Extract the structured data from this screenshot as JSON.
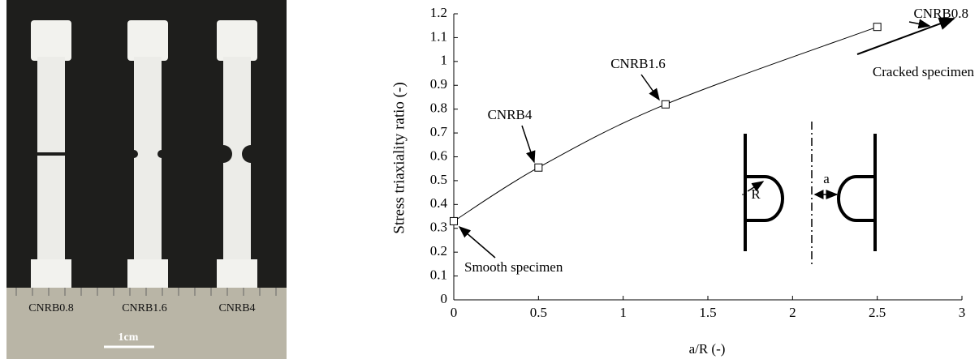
{
  "photo": {
    "labels": [
      "CNRB0.8",
      "CNRB1.6",
      "CNRB4"
    ],
    "scale": "1cm"
  },
  "chart_data": {
    "type": "line",
    "xlabel": "a/R (-)",
    "ylabel": "Stress triaxiality ratio (-)",
    "x": [
      0,
      0.5,
      1.25,
      2.5
    ],
    "series": [
      {
        "color": "#000000",
        "values": [
          0.33,
          0.555,
          0.82,
          1.145
        ]
      }
    ],
    "xlim": [
      0,
      3
    ],
    "xticks": [
      0,
      0.5,
      1,
      1.5,
      2,
      2.5,
      3
    ],
    "ylim": [
      0,
      1.2
    ],
    "yticks": [
      0,
      0.1,
      0.2,
      0.3,
      0.4,
      0.5,
      0.6,
      0.7,
      0.8,
      0.9,
      1,
      1.1,
      1.2
    ],
    "annotations": [
      "CNRB0.8",
      "CNRB1.6",
      "CNRB4",
      "Smooth specimen",
      "Cracked specimen"
    ],
    "inset_labels": [
      "a",
      "R"
    ]
  }
}
